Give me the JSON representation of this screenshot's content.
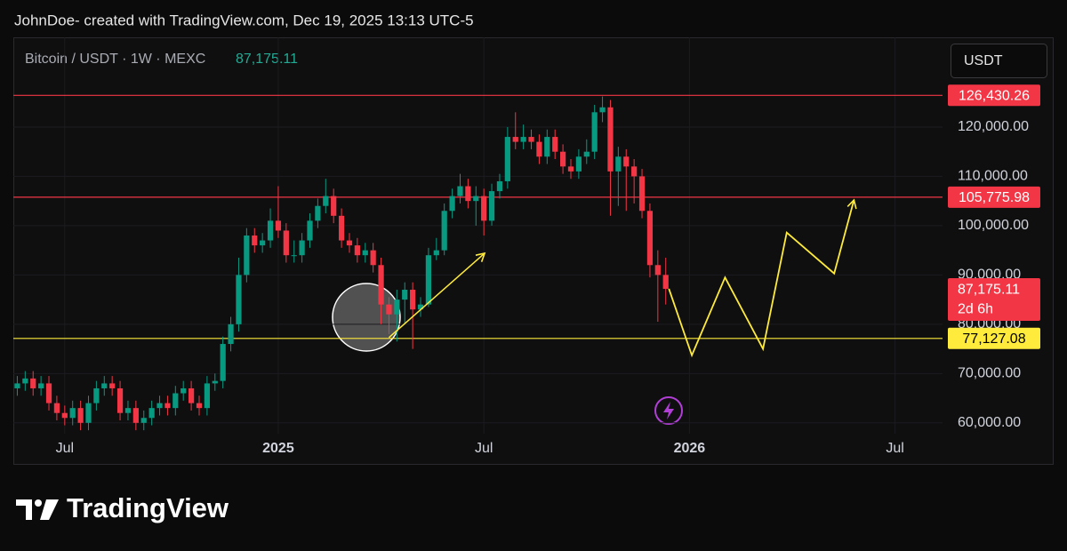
{
  "header": {
    "attribution": "JohnDoe- created with TradingView.com, Dec 19, 2025 13:13 UTC-5"
  },
  "chart_data": {
    "type": "candlestick",
    "symbol": "Bitcoin / USDT · 1W · MEXC",
    "last_price_label": "87,175.11",
    "countdown": "2d 6h",
    "currency": "USDT",
    "up_color": "#089981",
    "down_color": "#f23645",
    "open": [
      67000,
      68000,
      69000,
      67000,
      68000,
      64000,
      62000,
      61000,
      63000,
      60000,
      64000,
      67000,
      68000,
      67000,
      62000,
      63000,
      60000,
      61000,
      63000,
      64000,
      63000,
      66000,
      67000,
      64000,
      63000,
      68000,
      68500,
      76000,
      80000,
      90000,
      98000,
      96000,
      97000,
      101000,
      99000,
      94000,
      94000,
      97000,
      101000,
      104000,
      106000,
      102000,
      97000,
      96000,
      94000,
      95000,
      92000,
      84000,
      82000,
      85000,
      87000,
      83000,
      84000,
      94000,
      95000,
      103000,
      106000,
      108000,
      105000,
      106000,
      101000,
      107000,
      109000,
      118000,
      117000,
      118000,
      117000,
      114000,
      118000,
      115000,
      112000,
      111000,
      114000,
      115000,
      123000,
      124000,
      111000,
      114000,
      112000,
      110000,
      103000,
      92000,
      90000
    ],
    "high": [
      69500,
      70500,
      70500,
      69500,
      69500,
      65500,
      63500,
      64500,
      64500,
      65500,
      68500,
      69500,
      69500,
      68500,
      64500,
      64500,
      62500,
      64500,
      65500,
      65500,
      67500,
      68500,
      68500,
      65500,
      69500,
      70000,
      77500,
      81500,
      93500,
      99500,
      99500,
      98500,
      103500,
      108000,
      100500,
      97000,
      98500,
      102500,
      105500,
      109500,
      107500,
      103500,
      98500,
      97500,
      96500,
      96500,
      93500,
      85500,
      87000,
      88500,
      88500,
      85500,
      95500,
      97500,
      104500,
      107500,
      110500,
      109500,
      108000,
      107500,
      108500,
      110500,
      120000,
      123000,
      120500,
      119500,
      118500,
      119500,
      119500,
      116500,
      113500,
      115500,
      117500,
      124500,
      126200,
      125500,
      116000,
      115500,
      113500,
      111500,
      104500,
      95000,
      93500
    ],
    "low": [
      65500,
      66500,
      65500,
      65500,
      62500,
      60500,
      59500,
      59500,
      58500,
      58500,
      62500,
      65500,
      65500,
      60500,
      60500,
      58500,
      58500,
      59500,
      61500,
      61500,
      61500,
      64500,
      62500,
      61500,
      61500,
      66500,
      67000,
      74500,
      78500,
      88500,
      94500,
      94500,
      95500,
      97500,
      92500,
      92500,
      92500,
      95500,
      99500,
      102500,
      100500,
      95500,
      94500,
      92500,
      92500,
      90500,
      80000,
      78000,
      76500,
      80000,
      75000,
      81500,
      83500,
      93000,
      94000,
      101500,
      104500,
      103500,
      100000,
      98000,
      100000,
      105500,
      107500,
      115500,
      115500,
      115500,
      112500,
      112500,
      113500,
      110500,
      109500,
      109500,
      112500,
      113500,
      121000,
      102000,
      104000,
      103000,
      104500,
      101500,
      89500,
      80500,
      84000
    ],
    "close": [
      68000,
      69000,
      67000,
      68000,
      64000,
      62000,
      61000,
      63000,
      60000,
      64000,
      67000,
      68000,
      67000,
      62000,
      63000,
      60000,
      61000,
      63000,
      64000,
      63000,
      66000,
      67000,
      64000,
      63000,
      68000,
      68500,
      76000,
      80000,
      90000,
      98000,
      96000,
      97000,
      101000,
      99000,
      94000,
      94000,
      97000,
      101000,
      104000,
      106000,
      102000,
      97000,
      96000,
      94000,
      95000,
      92000,
      84000,
      82000,
      85000,
      87000,
      83000,
      84000,
      94000,
      95000,
      103000,
      106000,
      108000,
      105000,
      106000,
      101000,
      107000,
      109000,
      118000,
      117000,
      118000,
      117000,
      114000,
      118000,
      115000,
      112000,
      111000,
      114000,
      115000,
      123000,
      124000,
      111000,
      114000,
      112000,
      110000,
      103000,
      92000,
      90000,
      87175.11
    ],
    "xlim": [
      -0.5,
      117
    ],
    "xticks": [
      {
        "value": 6,
        "label": "Jul"
      },
      {
        "value": 33,
        "label": "2025"
      },
      {
        "value": 59,
        "label": "Jul"
      },
      {
        "value": 85,
        "label": "2026"
      },
      {
        "value": 111,
        "label": "Jul"
      }
    ],
    "ylim": [
      57800,
      138200
    ],
    "yticks": [
      {
        "value": 60000,
        "label": "60,000.00"
      },
      {
        "value": 70000,
        "label": "70,000.00"
      },
      {
        "value": 80000,
        "label": "80,000.00"
      },
      {
        "value": 90000,
        "label": "90,000.00"
      },
      {
        "value": 100000,
        "label": "100,000.00"
      },
      {
        "value": 110000,
        "label": "110,000.00"
      },
      {
        "value": 120000,
        "label": "120,000.00"
      }
    ],
    "levels": [
      {
        "value": 126430.26,
        "label": "126,430.26",
        "color": "#f23645"
      },
      {
        "value": 105775.98,
        "label": "105,775.98",
        "color": "#f23645"
      },
      {
        "value": 77127.08,
        "label": "77,127.08",
        "color": "#ffeb3b"
      }
    ],
    "projection": {
      "color": "#ffeb3b",
      "x": [
        82.4,
        85.3,
        89.5,
        94.3,
        97.3,
        103.3,
        105.8
      ],
      "values": [
        87200,
        73700,
        89500,
        75000,
        98600,
        90300,
        105200
      ]
    },
    "arrow": {
      "color": "#ffeb3b",
      "x": [
        47,
        59.1
      ],
      "values": [
        77300,
        94400
      ]
    }
  },
  "footer": {
    "brand": "TradingView"
  }
}
